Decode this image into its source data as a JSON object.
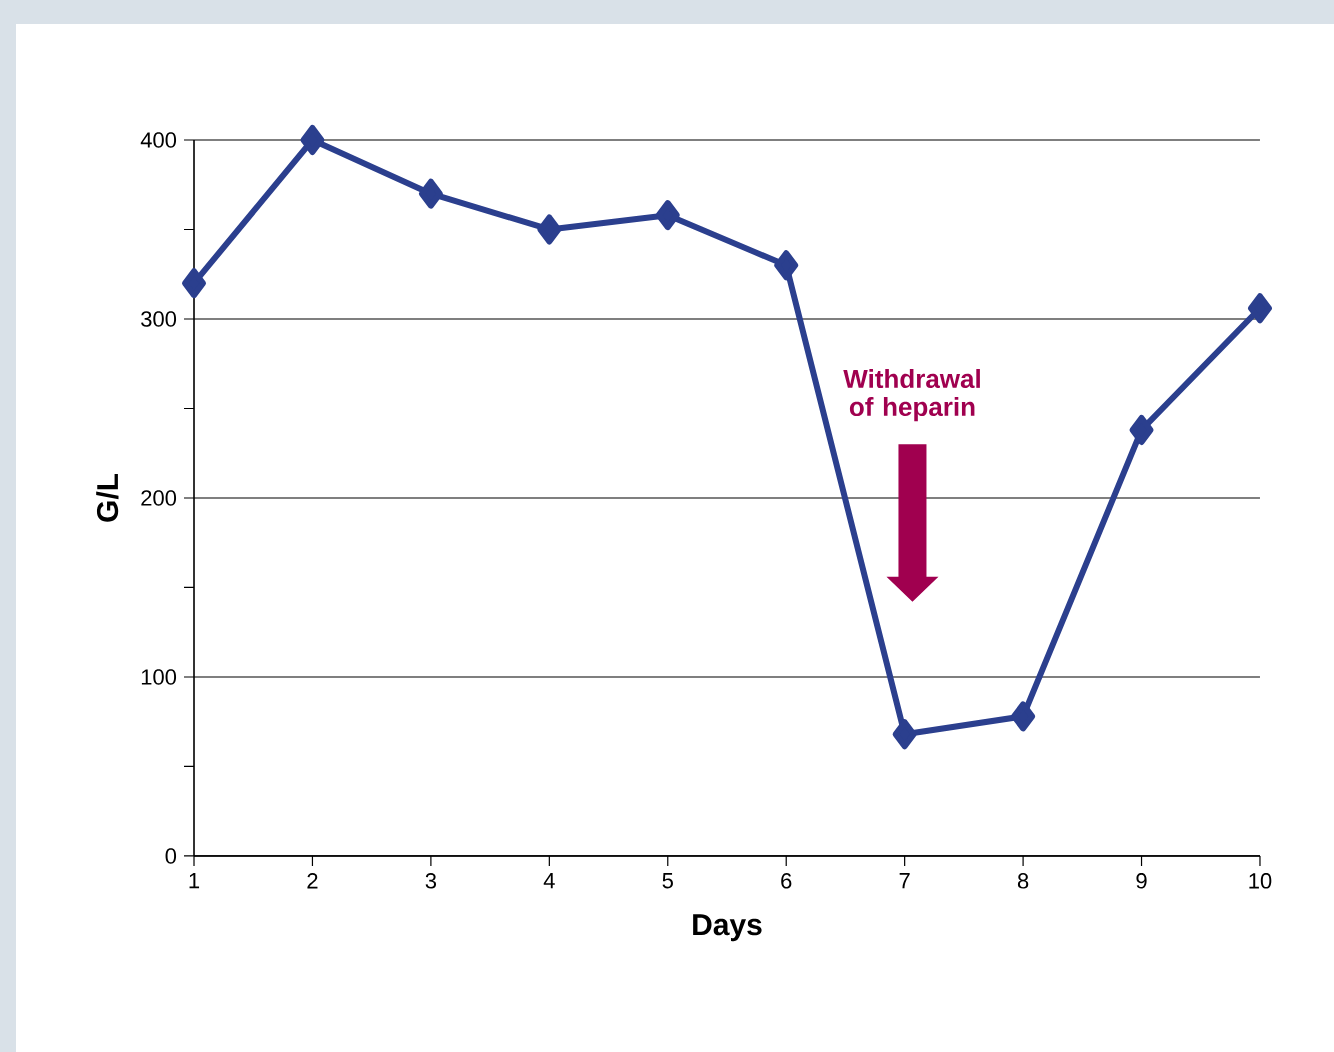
{
  "chart_data": {
    "type": "line",
    "xlabel": "Days",
    "ylabel": "G/L",
    "x": [
      1,
      2,
      3,
      4,
      5,
      6,
      7,
      8,
      9,
      10
    ],
    "series": [
      {
        "color": "#2b3f8e",
        "values": [
          320,
          400,
          370,
          350,
          358,
          330,
          68,
          78,
          238,
          306
        ]
      }
    ],
    "xlim": [
      1,
      10
    ],
    "xticks": [
      1,
      2,
      3,
      4,
      5,
      6,
      7,
      8,
      9,
      10
    ],
    "ylim": [
      0,
      400
    ],
    "yticks": [
      0,
      100,
      200,
      300,
      400
    ],
    "grid": "y",
    "marker": "diamond",
    "line_style": "solid",
    "annotations": [
      "Withdrawal of heparin"
    ]
  }
}
